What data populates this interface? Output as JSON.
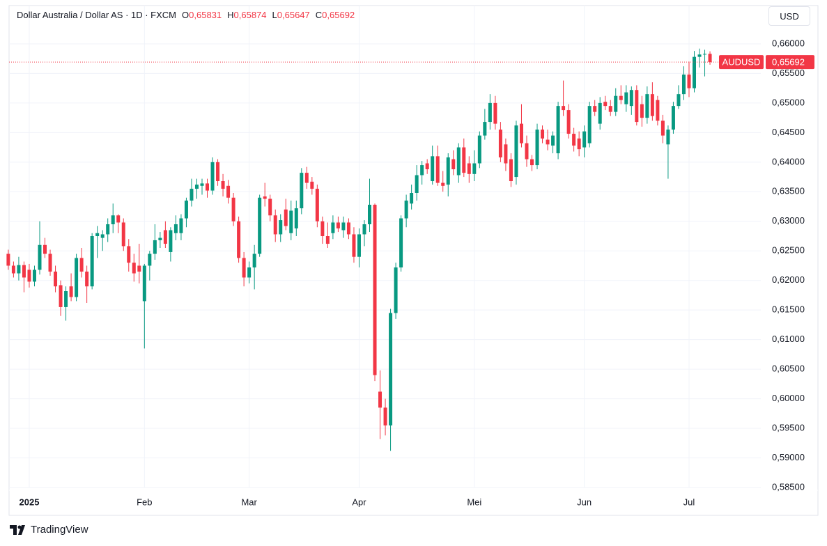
{
  "header": {
    "title": "Dollar Australia / Dollar AS · 1D · FXCM",
    "ohlc": [
      {
        "key": "O",
        "label": "0,65831"
      },
      {
        "key": "H",
        "label": "0,65874"
      },
      {
        "key": "L",
        "label": "0,65647"
      },
      {
        "key": "C",
        "label": "0,65692"
      }
    ]
  },
  "currency": "USD",
  "branding": "TradingView",
  "chart_data": {
    "type": "candlestick",
    "symbol": "AUDUSD",
    "last_price_label": "0,65692",
    "up_color": "#089981",
    "down_color": "#f23645",
    "grid": true,
    "ylim": [
      0.58029,
      0.66647
    ],
    "yticks": [
      {
        "value": 0.585,
        "label": "0,58500"
      },
      {
        "value": 0.59,
        "label": "0,59000"
      },
      {
        "value": 0.595,
        "label": "0,59500"
      },
      {
        "value": 0.6,
        "label": "0,60000"
      },
      {
        "value": 0.605,
        "label": "0,60500"
      },
      {
        "value": 0.61,
        "label": "0,61000"
      },
      {
        "value": 0.615,
        "label": "0,61500"
      },
      {
        "value": 0.62,
        "label": "0,62000"
      },
      {
        "value": 0.625,
        "label": "0,62500"
      },
      {
        "value": 0.63,
        "label": "0,63000"
      },
      {
        "value": 0.635,
        "label": "0,63500"
      },
      {
        "value": 0.64,
        "label": "0,64000"
      },
      {
        "value": 0.645,
        "label": "0,64500"
      },
      {
        "value": 0.65,
        "label": "0,65000"
      },
      {
        "value": 0.655,
        "label": "0,65500"
      },
      {
        "value": 0.66,
        "label": "0,66000"
      }
    ],
    "categories": [
      null,
      null,
      null,
      null,
      "2025",
      null,
      null,
      null,
      null,
      null,
      null,
      null,
      null,
      null,
      null,
      null,
      null,
      null,
      null,
      null,
      null,
      null,
      null,
      null,
      null,
      null,
      "Feb",
      null,
      null,
      null,
      null,
      null,
      null,
      null,
      null,
      null,
      null,
      null,
      null,
      null,
      null,
      null,
      null,
      null,
      null,
      null,
      "Mar",
      null,
      null,
      null,
      null,
      null,
      null,
      null,
      null,
      null,
      null,
      null,
      null,
      null,
      null,
      null,
      null,
      null,
      null,
      null,
      null,
      "Apr",
      null,
      null,
      null,
      null,
      null,
      null,
      null,
      null,
      null,
      null,
      null,
      null,
      null,
      null,
      null,
      null,
      null,
      null,
      null,
      null,
      null,
      "Mei",
      null,
      null,
      null,
      null,
      null,
      null,
      null,
      null,
      null,
      null,
      null,
      null,
      null,
      null,
      null,
      null,
      null,
      null,
      null,
      null,
      "Jun",
      null,
      null,
      null,
      null,
      null,
      null,
      null,
      null,
      null,
      null,
      null,
      null,
      null,
      null,
      null,
      null,
      null,
      null,
      null,
      "Jul",
      null,
      null
    ],
    "candles": [
      {
        "o": 0.6245,
        "h": 0.6252,
        "l": 0.6218,
        "c": 0.6225
      },
      {
        "o": 0.6225,
        "h": 0.6232,
        "l": 0.6205,
        "c": 0.6212
      },
      {
        "o": 0.6212,
        "h": 0.624,
        "l": 0.62,
        "c": 0.6226
      },
      {
        "o": 0.6226,
        "h": 0.6232,
        "l": 0.618,
        "c": 0.6205
      },
      {
        "o": 0.6218,
        "h": 0.6228,
        "l": 0.6188,
        "c": 0.6198
      },
      {
        "o": 0.6198,
        "h": 0.6225,
        "l": 0.619,
        "c": 0.6218
      },
      {
        "o": 0.6218,
        "h": 0.63,
        "l": 0.621,
        "c": 0.626
      },
      {
        "o": 0.626,
        "h": 0.6272,
        "l": 0.6238,
        "c": 0.6245
      },
      {
        "o": 0.6245,
        "h": 0.6252,
        "l": 0.6208,
        "c": 0.6215
      },
      {
        "o": 0.6215,
        "h": 0.6225,
        "l": 0.618,
        "c": 0.619
      },
      {
        "o": 0.6192,
        "h": 0.62,
        "l": 0.614,
        "c": 0.6155
      },
      {
        "o": 0.6155,
        "h": 0.619,
        "l": 0.6132,
        "c": 0.6182
      },
      {
        "o": 0.619,
        "h": 0.6212,
        "l": 0.6165,
        "c": 0.6172
      },
      {
        "o": 0.6172,
        "h": 0.6245,
        "l": 0.6165,
        "c": 0.6238
      },
      {
        "o": 0.6238,
        "h": 0.6255,
        "l": 0.6205,
        "c": 0.6215
      },
      {
        "o": 0.6215,
        "h": 0.6225,
        "l": 0.6162,
        "c": 0.619
      },
      {
        "o": 0.619,
        "h": 0.628,
        "l": 0.6185,
        "c": 0.6275
      },
      {
        "o": 0.6275,
        "h": 0.6292,
        "l": 0.6238,
        "c": 0.628
      },
      {
        "o": 0.6272,
        "h": 0.6285,
        "l": 0.625,
        "c": 0.6278
      },
      {
        "o": 0.6278,
        "h": 0.6305,
        "l": 0.6265,
        "c": 0.6295
      },
      {
        "o": 0.6295,
        "h": 0.633,
        "l": 0.628,
        "c": 0.631
      },
      {
        "o": 0.631,
        "h": 0.6312,
        "l": 0.628,
        "c": 0.6298
      },
      {
        "o": 0.6298,
        "h": 0.6305,
        "l": 0.625,
        "c": 0.6258
      },
      {
        "o": 0.6258,
        "h": 0.627,
        "l": 0.6215,
        "c": 0.623
      },
      {
        "o": 0.623,
        "h": 0.6245,
        "l": 0.6198,
        "c": 0.6212
      },
      {
        "o": 0.6225,
        "h": 0.6262,
        "l": 0.6195,
        "c": 0.6215
      },
      {
        "o": 0.6165,
        "h": 0.6228,
        "l": 0.6085,
        "c": 0.6225
      },
      {
        "o": 0.6225,
        "h": 0.625,
        "l": 0.62,
        "c": 0.6245
      },
      {
        "o": 0.6245,
        "h": 0.6295,
        "l": 0.6235,
        "c": 0.6268
      },
      {
        "o": 0.6268,
        "h": 0.6282,
        "l": 0.6255,
        "c": 0.6272
      },
      {
        "o": 0.6285,
        "h": 0.63,
        "l": 0.6255,
        "c": 0.6262
      },
      {
        "o": 0.6248,
        "h": 0.629,
        "l": 0.6232,
        "c": 0.6285
      },
      {
        "o": 0.628,
        "h": 0.631,
        "l": 0.6268,
        "c": 0.6295
      },
      {
        "o": 0.628,
        "h": 0.6312,
        "l": 0.6268,
        "c": 0.6305
      },
      {
        "o": 0.6305,
        "h": 0.634,
        "l": 0.629,
        "c": 0.6335
      },
      {
        "o": 0.6335,
        "h": 0.6372,
        "l": 0.6325,
        "c": 0.6355
      },
      {
        "o": 0.6355,
        "h": 0.6372,
        "l": 0.6338,
        "c": 0.6362
      },
      {
        "o": 0.636,
        "h": 0.6372,
        "l": 0.6345,
        "c": 0.6364
      },
      {
        "o": 0.6364,
        "h": 0.6372,
        "l": 0.634,
        "c": 0.6352
      },
      {
        "o": 0.6352,
        "h": 0.6408,
        "l": 0.6345,
        "c": 0.64
      },
      {
        "o": 0.64,
        "h": 0.6405,
        "l": 0.636,
        "c": 0.6368
      },
      {
        "o": 0.6368,
        "h": 0.638,
        "l": 0.6342,
        "c": 0.6355
      },
      {
        "o": 0.636,
        "h": 0.637,
        "l": 0.633,
        "c": 0.634
      },
      {
        "o": 0.634,
        "h": 0.6348,
        "l": 0.6292,
        "c": 0.63
      },
      {
        "o": 0.63,
        "h": 0.6308,
        "l": 0.623,
        "c": 0.6238
      },
      {
        "o": 0.6238,
        "h": 0.6248,
        "l": 0.619,
        "c": 0.6205
      },
      {
        "o": 0.6205,
        "h": 0.6232,
        "l": 0.6195,
        "c": 0.6222
      },
      {
        "o": 0.6222,
        "h": 0.626,
        "l": 0.6185,
        "c": 0.6245
      },
      {
        "o": 0.6245,
        "h": 0.6345,
        "l": 0.624,
        "c": 0.634
      },
      {
        "o": 0.6342,
        "h": 0.6365,
        "l": 0.6325,
        "c": 0.6338
      },
      {
        "o": 0.6338,
        "h": 0.6345,
        "l": 0.63,
        "c": 0.631
      },
      {
        "o": 0.631,
        "h": 0.632,
        "l": 0.6265,
        "c": 0.6278
      },
      {
        "o": 0.6278,
        "h": 0.6312,
        "l": 0.6265,
        "c": 0.6302
      },
      {
        "o": 0.632,
        "h": 0.6338,
        "l": 0.6285,
        "c": 0.6292
      },
      {
        "o": 0.628,
        "h": 0.6335,
        "l": 0.6268,
        "c": 0.6318
      },
      {
        "o": 0.6288,
        "h": 0.6335,
        "l": 0.6275,
        "c": 0.6322
      },
      {
        "o": 0.6322,
        "h": 0.639,
        "l": 0.6312,
        "c": 0.6382
      },
      {
        "o": 0.6382,
        "h": 0.6392,
        "l": 0.6355,
        "c": 0.6365
      },
      {
        "o": 0.6367,
        "h": 0.6375,
        "l": 0.6345,
        "c": 0.6355
      },
      {
        "o": 0.6355,
        "h": 0.6362,
        "l": 0.629,
        "c": 0.63
      },
      {
        "o": 0.63,
        "h": 0.6308,
        "l": 0.6262,
        "c": 0.6275
      },
      {
        "o": 0.6275,
        "h": 0.6298,
        "l": 0.6255,
        "c": 0.6262
      },
      {
        "o": 0.628,
        "h": 0.631,
        "l": 0.627,
        "c": 0.6298
      },
      {
        "o": 0.6298,
        "h": 0.6308,
        "l": 0.6282,
        "c": 0.6288
      },
      {
        "o": 0.6285,
        "h": 0.6308,
        "l": 0.6272,
        "c": 0.6298
      },
      {
        "o": 0.6298,
        "h": 0.6305,
        "l": 0.627,
        "c": 0.6278
      },
      {
        "o": 0.6278,
        "h": 0.629,
        "l": 0.623,
        "c": 0.624
      },
      {
        "o": 0.624,
        "h": 0.6288,
        "l": 0.6222,
        "c": 0.6278
      },
      {
        "o": 0.6278,
        "h": 0.6302,
        "l": 0.6258,
        "c": 0.6295
      },
      {
        "o": 0.6295,
        "h": 0.6372,
        "l": 0.6282,
        "c": 0.6328
      },
      {
        "o": 0.6328,
        "h": 0.633,
        "l": 0.603,
        "c": 0.604
      },
      {
        "o": 0.6012,
        "h": 0.6048,
        "l": 0.5932,
        "c": 0.5985
      },
      {
        "o": 0.5985,
        "h": 0.6,
        "l": 0.5938,
        "c": 0.5955
      },
      {
        "o": 0.5955,
        "h": 0.6152,
        "l": 0.5912,
        "c": 0.6145
      },
      {
        "o": 0.6145,
        "h": 0.623,
        "l": 0.6135,
        "c": 0.6222
      },
      {
        "o": 0.6222,
        "h": 0.631,
        "l": 0.6215,
        "c": 0.6305
      },
      {
        "o": 0.6305,
        "h": 0.6345,
        "l": 0.629,
        "c": 0.6335
      },
      {
        "o": 0.633,
        "h": 0.6362,
        "l": 0.632,
        "c": 0.6348
      },
      {
        "o": 0.6348,
        "h": 0.6395,
        "l": 0.6335,
        "c": 0.6378
      },
      {
        "o": 0.6378,
        "h": 0.6402,
        "l": 0.6362,
        "c": 0.6395
      },
      {
        "o": 0.6398,
        "h": 0.6405,
        "l": 0.638,
        "c": 0.6388
      },
      {
        "o": 0.6368,
        "h": 0.6428,
        "l": 0.6362,
        "c": 0.641
      },
      {
        "o": 0.641,
        "h": 0.6428,
        "l": 0.636,
        "c": 0.6365
      },
      {
        "o": 0.6365,
        "h": 0.6385,
        "l": 0.635,
        "c": 0.636
      },
      {
        "o": 0.6362,
        "h": 0.6415,
        "l": 0.6342,
        "c": 0.6408
      },
      {
        "o": 0.6405,
        "h": 0.642,
        "l": 0.6378,
        "c": 0.6388
      },
      {
        "o": 0.6378,
        "h": 0.6432,
        "l": 0.6365,
        "c": 0.6425
      },
      {
        "o": 0.6425,
        "h": 0.644,
        "l": 0.6375,
        "c": 0.6382
      },
      {
        "o": 0.6398,
        "h": 0.641,
        "l": 0.6365,
        "c": 0.638
      },
      {
        "o": 0.638,
        "h": 0.642,
        "l": 0.6368,
        "c": 0.6398
      },
      {
        "o": 0.6398,
        "h": 0.6452,
        "l": 0.639,
        "c": 0.6445
      },
      {
        "o": 0.6445,
        "h": 0.649,
        "l": 0.6438,
        "c": 0.6468
      },
      {
        "o": 0.6468,
        "h": 0.6515,
        "l": 0.6455,
        "c": 0.65
      },
      {
        "o": 0.65,
        "h": 0.6512,
        "l": 0.6455,
        "c": 0.6465
      },
      {
        "o": 0.6455,
        "h": 0.6468,
        "l": 0.64,
        "c": 0.6408
      },
      {
        "o": 0.643,
        "h": 0.644,
        "l": 0.6385,
        "c": 0.6398
      },
      {
        "o": 0.6405,
        "h": 0.6415,
        "l": 0.6358,
        "c": 0.6368
      },
      {
        "o": 0.6375,
        "h": 0.647,
        "l": 0.6362,
        "c": 0.6462
      },
      {
        "o": 0.6465,
        "h": 0.6498,
        "l": 0.6425,
        "c": 0.6432
      },
      {
        "o": 0.6432,
        "h": 0.6445,
        "l": 0.6392,
        "c": 0.6405
      },
      {
        "o": 0.6405,
        "h": 0.6412,
        "l": 0.6385,
        "c": 0.6395
      },
      {
        "o": 0.6395,
        "h": 0.6465,
        "l": 0.6388,
        "c": 0.6455
      },
      {
        "o": 0.6455,
        "h": 0.6462,
        "l": 0.6432,
        "c": 0.644
      },
      {
        "o": 0.6438,
        "h": 0.6455,
        "l": 0.642,
        "c": 0.643
      },
      {
        "o": 0.6428,
        "h": 0.6452,
        "l": 0.6415,
        "c": 0.6445
      },
      {
        "o": 0.6415,
        "h": 0.6502,
        "l": 0.6405,
        "c": 0.6495
      },
      {
        "o": 0.6495,
        "h": 0.6538,
        "l": 0.6478,
        "c": 0.6488
      },
      {
        "o": 0.6488,
        "h": 0.6498,
        "l": 0.644,
        "c": 0.6448
      },
      {
        "o": 0.6448,
        "h": 0.6458,
        "l": 0.6418,
        "c": 0.6428
      },
      {
        "o": 0.644,
        "h": 0.6452,
        "l": 0.641,
        "c": 0.6422
      },
      {
        "o": 0.6425,
        "h": 0.6462,
        "l": 0.6408,
        "c": 0.6452
      },
      {
        "o": 0.6432,
        "h": 0.6502,
        "l": 0.6425,
        "c": 0.6495
      },
      {
        "o": 0.6495,
        "h": 0.6505,
        "l": 0.6478,
        "c": 0.6485
      },
      {
        "o": 0.6465,
        "h": 0.651,
        "l": 0.6455,
        "c": 0.65
      },
      {
        "o": 0.6502,
        "h": 0.6512,
        "l": 0.6488,
        "c": 0.6495
      },
      {
        "o": 0.6495,
        "h": 0.6505,
        "l": 0.6478,
        "c": 0.6485
      },
      {
        "o": 0.6485,
        "h": 0.6525,
        "l": 0.6478,
        "c": 0.6512
      },
      {
        "o": 0.6512,
        "h": 0.653,
        "l": 0.6498,
        "c": 0.6505
      },
      {
        "o": 0.6498,
        "h": 0.653,
        "l": 0.6485,
        "c": 0.6518
      },
      {
        "o": 0.6495,
        "h": 0.6528,
        "l": 0.648,
        "c": 0.6522
      },
      {
        "o": 0.6522,
        "h": 0.653,
        "l": 0.6462,
        "c": 0.6468
      },
      {
        "o": 0.6498,
        "h": 0.6512,
        "l": 0.646,
        "c": 0.6475
      },
      {
        "o": 0.6475,
        "h": 0.6528,
        "l": 0.6465,
        "c": 0.6515
      },
      {
        "o": 0.6515,
        "h": 0.6535,
        "l": 0.647,
        "c": 0.6478
      },
      {
        "o": 0.6505,
        "h": 0.6512,
        "l": 0.6462,
        "c": 0.647
      },
      {
        "o": 0.647,
        "h": 0.648,
        "l": 0.6432,
        "c": 0.6445
      },
      {
        "o": 0.643,
        "h": 0.6462,
        "l": 0.6372,
        "c": 0.6455
      },
      {
        "o": 0.6455,
        "h": 0.6502,
        "l": 0.6448,
        "c": 0.6495
      },
      {
        "o": 0.6495,
        "h": 0.653,
        "l": 0.649,
        "c": 0.6515
      },
      {
        "o": 0.6515,
        "h": 0.6562,
        "l": 0.6505,
        "c": 0.6548
      },
      {
        "o": 0.6548,
        "h": 0.657,
        "l": 0.651,
        "c": 0.6525
      },
      {
        "o": 0.6525,
        "h": 0.6588,
        "l": 0.6518,
        "c": 0.6578
      },
      {
        "o": 0.6578,
        "h": 0.6592,
        "l": 0.656,
        "c": 0.6582
      },
      {
        "o": 0.6582,
        "h": 0.659,
        "l": 0.6545,
        "c": 0.6583
      },
      {
        "o": 0.65831,
        "h": 0.65874,
        "l": 0.65647,
        "c": 0.65692
      }
    ]
  }
}
